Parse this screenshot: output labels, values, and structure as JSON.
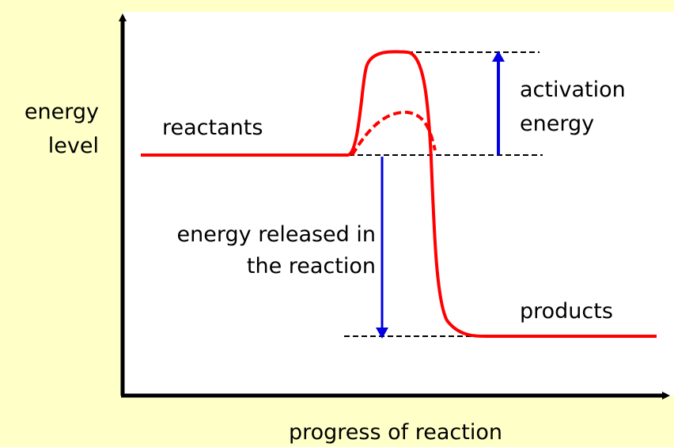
{
  "labels": {
    "y_axis": [
      "energy",
      "level"
    ],
    "reactants": "reactants",
    "activation_energy": [
      "activation",
      "energy"
    ],
    "energy_released": [
      "energy released in",
      "the reaction"
    ],
    "products": "products",
    "x_axis": "progress of reaction"
  }
}
